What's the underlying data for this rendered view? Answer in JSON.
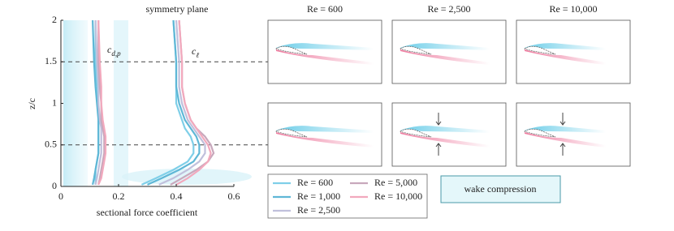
{
  "chart_data": {
    "type": "line",
    "title": "symmetry plane",
    "x_label": "sectional force coefficient",
    "y_label": "z/c",
    "xlim": [
      0,
      0.6
    ],
    "xticks": [
      0,
      0.2,
      0.4,
      0.6
    ],
    "ylim": [
      0,
      2
    ],
    "yticks": [
      0,
      0.5,
      1,
      1.5,
      2
    ],
    "reference_lines": [
      0.5,
      1.5
    ],
    "annotations": [
      {
        "label": "c",
        "subscript": "d,p"
      },
      {
        "label": "c",
        "subscript": "ℓ"
      }
    ],
    "z": [
      0.02,
      0.1,
      0.2,
      0.3,
      0.4,
      0.5,
      0.6,
      0.7,
      0.8,
      1.0,
      1.2,
      1.5,
      2.0
    ],
    "series": [
      {
        "name": "Re = 600",
        "color": "#7fcfe8",
        "cd_p": [
          0.12,
          0.12,
          0.12,
          0.125,
          0.13,
          0.13,
          0.13,
          0.13,
          0.13,
          0.13,
          0.125,
          0.12,
          0.12
        ],
        "c_l": [
          0.28,
          0.33,
          0.39,
          0.44,
          0.46,
          0.46,
          0.45,
          0.43,
          0.42,
          0.4,
          0.4,
          0.4,
          0.39
        ]
      },
      {
        "name": "Re = 1,000",
        "color": "#5fb7d6",
        "cd_p": [
          0.11,
          0.115,
          0.12,
          0.125,
          0.13,
          0.13,
          0.13,
          0.13,
          0.13,
          0.125,
          0.12,
          0.115,
          0.11
        ],
        "c_l": [
          0.3,
          0.35,
          0.41,
          0.46,
          0.48,
          0.48,
          0.47,
          0.45,
          0.43,
          0.41,
          0.4,
          0.4,
          0.39
        ]
      },
      {
        "name": "Re = 2,500",
        "color": "#c0c0dc",
        "cd_p": [
          0.12,
          0.125,
          0.13,
          0.135,
          0.14,
          0.14,
          0.14,
          0.14,
          0.135,
          0.13,
          0.13,
          0.125,
          0.12
        ],
        "c_l": [
          0.34,
          0.39,
          0.44,
          0.48,
          0.5,
          0.5,
          0.48,
          0.46,
          0.44,
          0.42,
          0.41,
          0.41,
          0.4
        ]
      },
      {
        "name": "Re = 5,000",
        "color": "#c8a8bc",
        "cd_p": [
          0.13,
          0.135,
          0.14,
          0.145,
          0.15,
          0.15,
          0.15,
          0.145,
          0.14,
          0.14,
          0.135,
          0.13,
          0.13
        ],
        "c_l": [
          0.38,
          0.42,
          0.47,
          0.51,
          0.53,
          0.52,
          0.5,
          0.47,
          0.45,
          0.43,
          0.42,
          0.42,
          0.41
        ]
      },
      {
        "name": "Re = 10,000",
        "color": "#f2a9bd",
        "cd_p": [
          0.13,
          0.14,
          0.145,
          0.15,
          0.155,
          0.155,
          0.155,
          0.15,
          0.145,
          0.14,
          0.14,
          0.135,
          0.13
        ],
        "c_l": [
          0.4,
          0.44,
          0.48,
          0.51,
          0.52,
          0.51,
          0.49,
          0.47,
          0.45,
          0.43,
          0.42,
          0.42,
          0.41
        ]
      }
    ],
    "panel_titles": [
      "Re = 600",
      "Re = 2,500",
      "Re = 10,000"
    ],
    "callout": "wake compression"
  }
}
